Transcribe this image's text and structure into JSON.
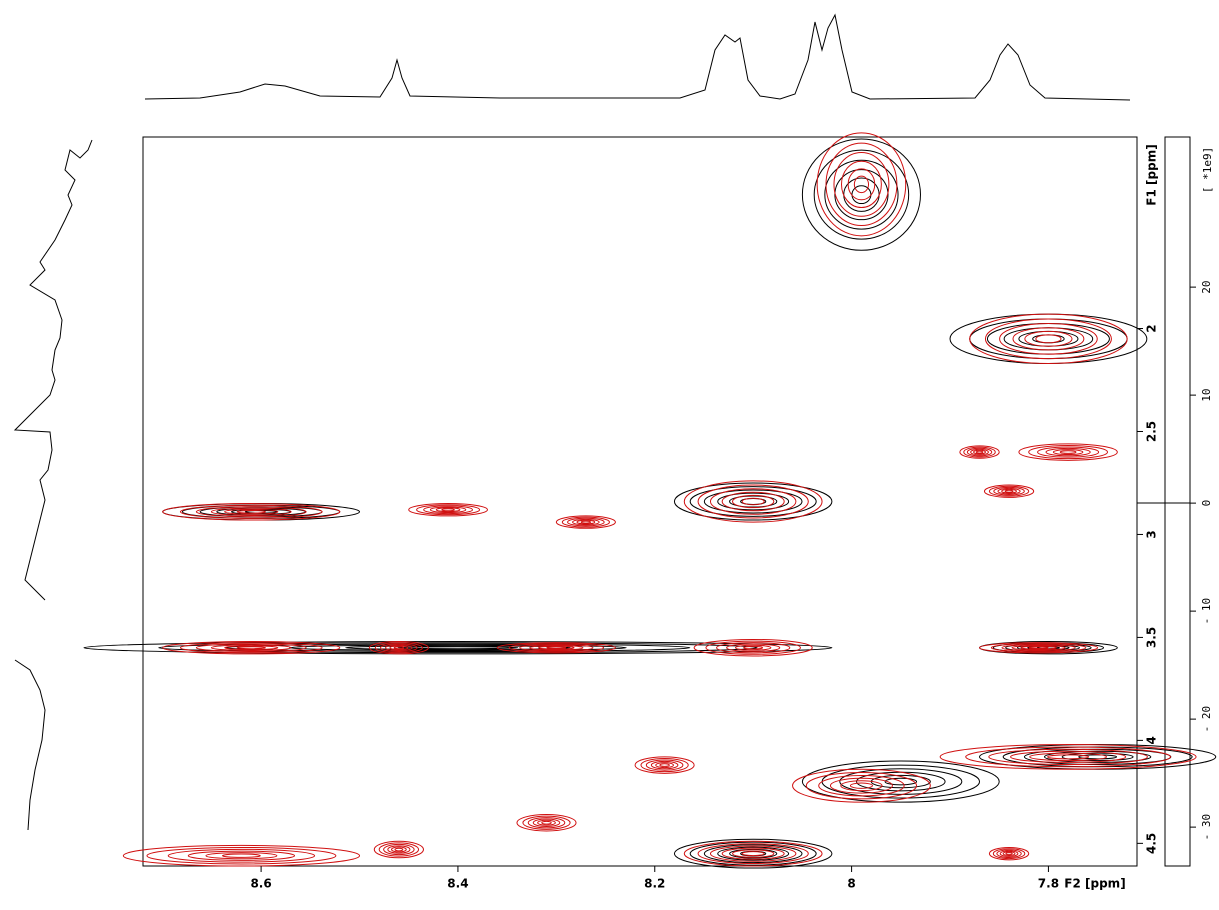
{
  "chart_data": {
    "type": "contour",
    "x_label": "F2 [ppm]",
    "y_label": "F1 [ppm]",
    "y2_label": "[ *1e9]",
    "xlim": [
      8.72,
      7.71
    ],
    "xticks": [
      8.6,
      8.4,
      8.2,
      8.0,
      7.8
    ],
    "ylim": [
      1.07,
      4.61
    ],
    "yticks": [
      2.0,
      2.5,
      3.0,
      3.5,
      4.0,
      4.5
    ],
    "y2lim": [
      33.9,
      -33.6
    ],
    "y2ticks": [
      20,
      10,
      0,
      {
        "value": -10,
        "label": "- 10"
      },
      {
        "value": -20,
        "label": "- 20"
      },
      {
        "value": -30,
        "label": "- 30"
      }
    ],
    "series": [
      {
        "color": "#000000",
        "x": [
          7.99,
          7.8,
          8.1,
          8.4,
          7.8,
          7.95,
          7.75,
          8.1,
          8.6
        ],
        "y": [
          1.35,
          2.05,
          2.84,
          3.55,
          3.55,
          4.2,
          4.08,
          4.55,
          2.89
        ],
        "x_halfwidth": [
          0.06,
          0.1,
          0.08,
          0.38,
          0.07,
          0.1,
          0.12,
          0.08,
          0.1
        ],
        "y_halfwidth": [
          0.27,
          0.12,
          0.09,
          0.03,
          0.03,
          0.1,
          0.06,
          0.07,
          0.04
        ]
      },
      {
        "color": "#d01010",
        "x": [
          7.99,
          7.8,
          7.87,
          7.78,
          7.84,
          8.61,
          8.41,
          8.1,
          8.27,
          8.61,
          8.46,
          8.3,
          8.1,
          7.81,
          8.19,
          7.99,
          7.78,
          8.1,
          8.62,
          7.84,
          8.46,
          8.31
        ],
        "y": [
          1.3,
          2.05,
          2.6,
          2.6,
          2.79,
          2.89,
          2.88,
          2.84,
          2.94,
          3.55,
          3.55,
          3.55,
          3.55,
          3.55,
          4.12,
          4.22,
          4.08,
          4.55,
          4.56,
          4.55,
          4.53,
          4.4
        ],
        "x_halfwidth": [
          0.045,
          0.08,
          0.02,
          0.05,
          0.025,
          0.09,
          0.04,
          0.07,
          0.03,
          0.09,
          0.03,
          0.06,
          0.06,
          0.06,
          0.03,
          0.07,
          0.13,
          0.07,
          0.12,
          0.02,
          0.025,
          0.03
        ],
        "y_halfwidth": [
          0.25,
          0.12,
          0.03,
          0.04,
          0.03,
          0.04,
          0.03,
          0.1,
          0.03,
          0.03,
          0.03,
          0.025,
          0.04,
          0.025,
          0.04,
          0.08,
          0.06,
          0.06,
          0.05,
          0.03,
          0.04,
          0.04
        ]
      }
    ]
  }
}
